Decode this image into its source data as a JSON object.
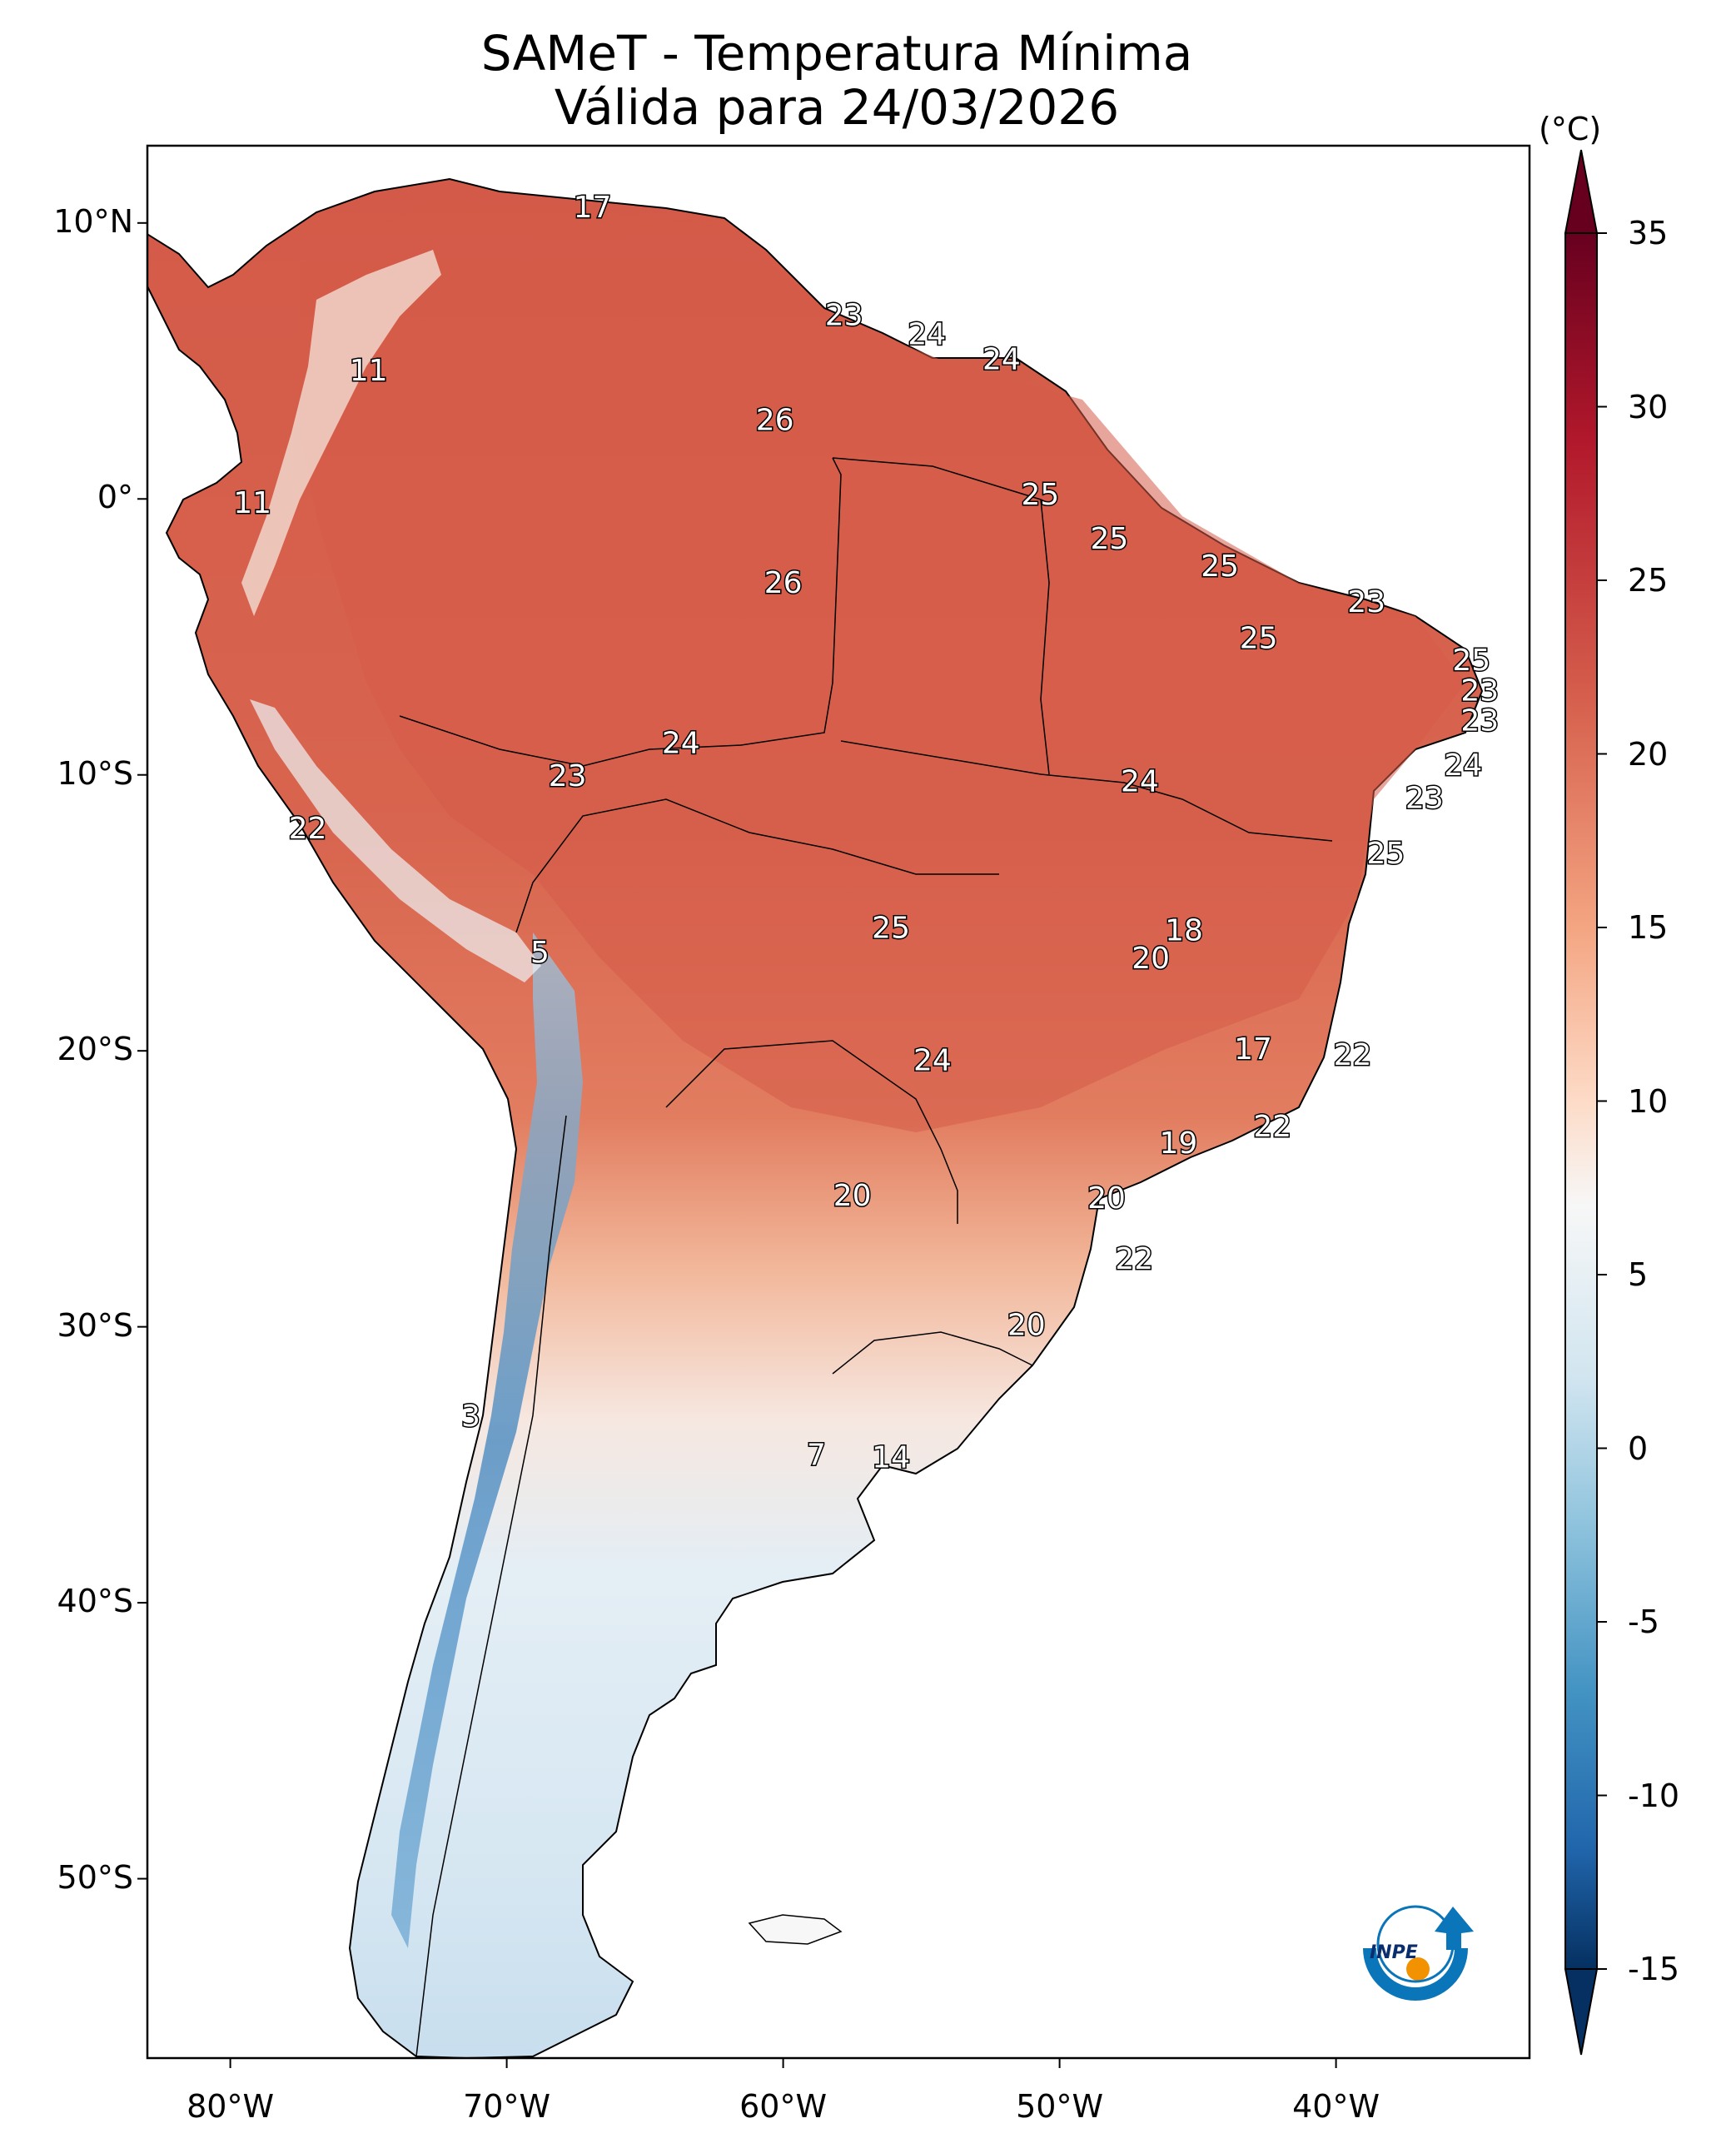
{
  "title": {
    "line1": "SAMeT - Temperatura Mínima",
    "line2": "Válida para 24/03/2026"
  },
  "axes": {
    "lat_ticks": [
      {
        "value": 10,
        "label": "10°N"
      },
      {
        "value": 0,
        "label": "0°"
      },
      {
        "value": -10,
        "label": "10°S"
      },
      {
        "value": -20,
        "label": "20°S"
      },
      {
        "value": -30,
        "label": "30°S"
      },
      {
        "value": -40,
        "label": "40°S"
      },
      {
        "value": -50,
        "label": "50°S"
      }
    ],
    "lon_ticks": [
      {
        "value": -80,
        "label": "80°W"
      },
      {
        "value": -70,
        "label": "70°W"
      },
      {
        "value": -60,
        "label": "60°W"
      },
      {
        "value": -50,
        "label": "50°W"
      },
      {
        "value": -40,
        "label": "40°W"
      }
    ],
    "lon_range": [
      -83.0,
      -33.0
    ],
    "lat_range": [
      -56.5,
      12.8
    ]
  },
  "colorbar": {
    "unit": "(°C)",
    "range": [
      -15,
      35
    ],
    "ticks": [
      "35",
      "30",
      "25",
      "20",
      "15",
      "10",
      "5",
      "0",
      "-5",
      "-10",
      "-15"
    ],
    "colors": [
      "#67001f",
      "#b2182b",
      "#d6604d",
      "#f4a582",
      "#fddbc7",
      "#f7f7f7",
      "#d1e5f0",
      "#92c5de",
      "#4393c3",
      "#2166ac",
      "#053061"
    ]
  },
  "colors": {
    "hot": "#d6604d",
    "warm": "#e07a5f",
    "mild": "#f4a582",
    "cool": "#f7f7f7",
    "cold": "#d1e5f0",
    "frigid": "#4393c3",
    "ocean": "#ffffff",
    "border": "#000000"
  },
  "station_labels": [
    {
      "text": "17",
      "lon": -66.9,
      "lat": 10.5
    },
    {
      "text": "23",
      "lon": -57.8,
      "lat": 6.6
    },
    {
      "text": "24",
      "lon": -54.8,
      "lat": 5.9
    },
    {
      "text": "24",
      "lon": -52.1,
      "lat": 5.0
    },
    {
      "text": "11",
      "lon": -75.0,
      "lat": 4.6
    },
    {
      "text": "26",
      "lon": -60.3,
      "lat": 2.8
    },
    {
      "text": "25",
      "lon": -50.7,
      "lat": 0.1
    },
    {
      "text": "11",
      "lon": -79.2,
      "lat": -0.2
    },
    {
      "text": "25",
      "lon": -48.2,
      "lat": -1.5
    },
    {
      "text": "25",
      "lon": -44.2,
      "lat": -2.5
    },
    {
      "text": "26",
      "lon": -60.0,
      "lat": -3.1
    },
    {
      "text": "23",
      "lon": -38.9,
      "lat": -3.8
    },
    {
      "text": "25",
      "lon": -42.8,
      "lat": -5.1
    },
    {
      "text": "25",
      "lon": -35.1,
      "lat": -5.9
    },
    {
      "text": "23",
      "lon": -34.8,
      "lat": -7.0
    },
    {
      "text": "23",
      "lon": -34.8,
      "lat": -8.1
    },
    {
      "text": "24",
      "lon": -63.7,
      "lat": -8.9
    },
    {
      "text": "24",
      "lon": -35.4,
      "lat": -9.7
    },
    {
      "text": "23",
      "lon": -67.8,
      "lat": -10.1
    },
    {
      "text": "24",
      "lon": -47.1,
      "lat": -10.3
    },
    {
      "text": "23",
      "lon": -36.8,
      "lat": -10.9
    },
    {
      "text": "22",
      "lon": -77.2,
      "lat": -12.0
    },
    {
      "text": "25",
      "lon": -38.2,
      "lat": -12.9
    },
    {
      "text": "25",
      "lon": -56.1,
      "lat": -15.6
    },
    {
      "text": "18",
      "lon": -45.5,
      "lat": -15.7
    },
    {
      "text": "5",
      "lon": -68.8,
      "lat": -16.5
    },
    {
      "text": "20",
      "lon": -46.7,
      "lat": -16.7
    },
    {
      "text": "17",
      "lon": -43.0,
      "lat": -20.0
    },
    {
      "text": "22",
      "lon": -39.4,
      "lat": -20.2
    },
    {
      "text": "24",
      "lon": -54.6,
      "lat": -20.4
    },
    {
      "text": "22",
      "lon": -42.3,
      "lat": -22.8
    },
    {
      "text": "19",
      "lon": -45.7,
      "lat": -23.4
    },
    {
      "text": "20",
      "lon": -57.5,
      "lat": -25.3
    },
    {
      "text": "20",
      "lon": -48.3,
      "lat": -25.4
    },
    {
      "text": "22",
      "lon": -47.3,
      "lat": -27.6
    },
    {
      "text": "20",
      "lon": -51.2,
      "lat": -30.0
    },
    {
      "text": "3",
      "lon": -71.3,
      "lat": -33.3
    },
    {
      "text": "7",
      "lon": -58.8,
      "lat": -34.7
    },
    {
      "text": "14",
      "lon": -56.1,
      "lat": -34.8
    }
  ],
  "logo": {
    "text": "INPE",
    "accent": "#f39200",
    "primary": "#0a75b8"
  }
}
